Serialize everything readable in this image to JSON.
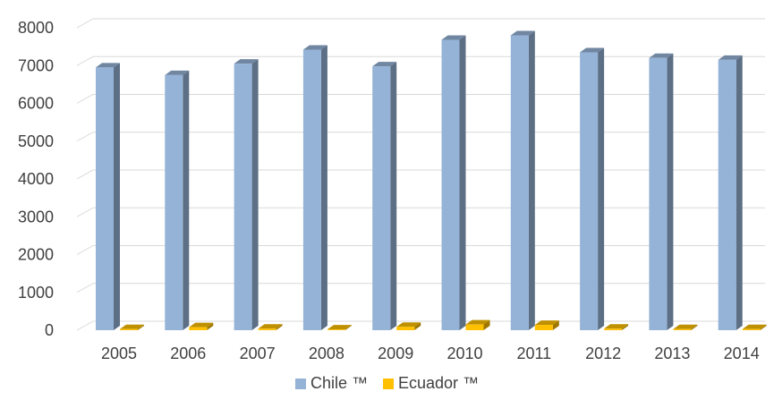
{
  "chart_data": {
    "type": "bar",
    "title": "",
    "xlabel": "",
    "ylabel": "",
    "categories": [
      "2005",
      "2006",
      "2007",
      "2008",
      "2009",
      "2010",
      "2011",
      "2012",
      "2013",
      "2014"
    ],
    "ylim": [
      0,
      8000
    ],
    "yticks": [
      "0",
      "1000",
      "2000",
      "3000",
      "4000",
      "5000",
      "6000",
      "7000",
      "8000"
    ],
    "grid": true,
    "legend_position": "bottom",
    "series": [
      {
        "name": "Chile ™",
        "color": "#95b3d7",
        "values": [
          6950,
          6750,
          7050,
          7420,
          6980,
          7680,
          7800,
          7350,
          7200,
          7150
        ]
      },
      {
        "name": "Ecuador ™",
        "color": "#ffc000",
        "values": [
          30,
          80,
          40,
          20,
          90,
          150,
          140,
          40,
          30,
          30
        ]
      }
    ]
  }
}
